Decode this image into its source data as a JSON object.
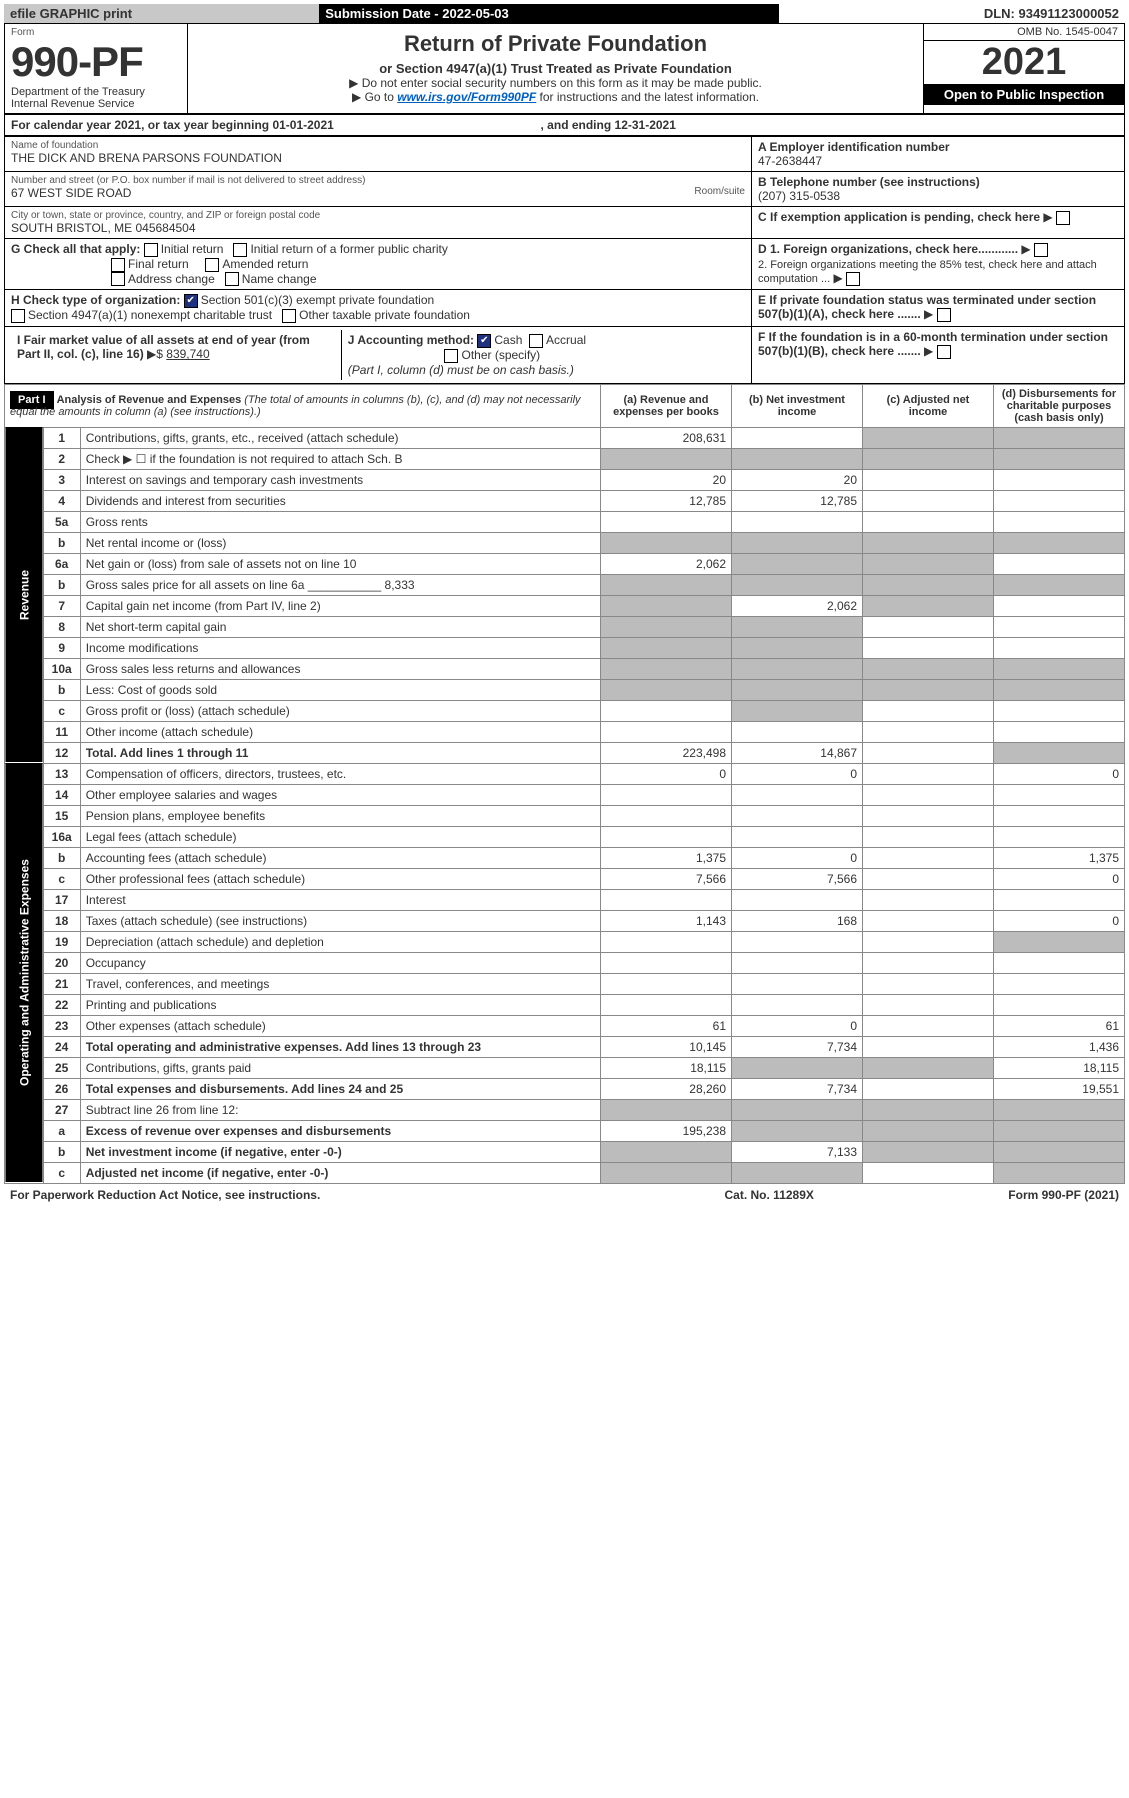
{
  "topbar": {
    "efile": "efile GRAPHIC print",
    "subdate_label": "Submission Date - ",
    "subdate": "2022-05-03",
    "dln_label": "DLN: ",
    "dln": "93491123000052"
  },
  "header": {
    "form_label": "Form",
    "form_num": "990-PF",
    "dept": "Department of the Treasury",
    "irs": "Internal Revenue Service",
    "title": "Return of Private Foundation",
    "sub": "or Section 4947(a)(1) Trust Treated as Private Foundation",
    "note1": "▶ Do not enter social security numbers on this form as it may be made public.",
    "note2_pre": "▶ Go to ",
    "note2_link": "www.irs.gov/Form990PF",
    "note2_post": " for instructions and the latest information.",
    "omb": "OMB No. 1545-0047",
    "year": "2021",
    "otp": "Open to Public Inspection"
  },
  "period": {
    "line": "For calendar year 2021, or tax year beginning 01-01-2021",
    "ending_label": ", and ending ",
    "ending": "12-31-2021"
  },
  "id": {
    "name_label": "Name of foundation",
    "name": "THE DICK AND BRENA PARSONS FOUNDATION",
    "addr_label": "Number and street (or P.O. box number if mail is not delivered to street address)",
    "addr": "67 WEST SIDE ROAD",
    "room_label": "Room/suite",
    "city_label": "City or town, state or province, country, and ZIP or foreign postal code",
    "city": "SOUTH BRISTOL, ME  045684504",
    "ein_label": "A Employer identification number",
    "ein": "47-2638447",
    "tel_label": "B Telephone number (see instructions)",
    "tel": "(207) 315-0538",
    "c_label": "C If exemption application is pending, check here",
    "d1": "D 1. Foreign organizations, check here............",
    "d2": "2. Foreign organizations meeting the 85% test, check here and attach computation ...",
    "e_label": "E  If private foundation status was terminated under section 507(b)(1)(A), check here .......",
    "f_label": "F  If the foundation is in a 60-month termination under section 507(b)(1)(B), check here .......",
    "g_label": "G Check all that apply:",
    "g_opts": [
      "Initial return",
      "Initial return of a former public charity",
      "Final return",
      "Amended return",
      "Address change",
      "Name change"
    ],
    "h_label": "H Check type of organization:",
    "h_opts": [
      "Section 501(c)(3) exempt private foundation",
      "Section 4947(a)(1) nonexempt charitable trust",
      "Other taxable private foundation"
    ],
    "i_label": "I Fair market value of all assets at end of year (from Part II, col. (c), line 16)",
    "i_val": "839,740",
    "j_label": "J Accounting method:",
    "j_opts": [
      "Cash",
      "Accrual",
      "Other (specify)"
    ],
    "j_note": "(Part I, column (d) must be on cash basis.)"
  },
  "part1": {
    "label": "Part I",
    "title": "Analysis of Revenue and Expenses",
    "note": "(The total of amounts in columns (b), (c), and (d) may not necessarily equal the amounts in column (a) (see instructions).)",
    "cols": {
      "a": "(a) Revenue and expenses per books",
      "b": "(b) Net investment income",
      "c": "(c) Adjusted net income",
      "d": "(d) Disbursements for charitable purposes (cash basis only)"
    },
    "side_rev": "Revenue",
    "side_exp": "Operating and Administrative Expenses",
    "rows": [
      {
        "n": "1",
        "desc": "Contributions, gifts, grants, etc., received (attach schedule)",
        "a": "208,631",
        "b": "",
        "c_grey": true,
        "d_grey": true
      },
      {
        "n": "2",
        "desc": "Check ▶ ☐ if the foundation is not required to attach Sch. B",
        "a_grey": true,
        "b_grey": true,
        "c_grey": true,
        "d_grey": true
      },
      {
        "n": "3",
        "desc": "Interest on savings and temporary cash investments",
        "a": "20",
        "b": "20"
      },
      {
        "n": "4",
        "desc": "Dividends and interest from securities",
        "a": "12,785",
        "b": "12,785"
      },
      {
        "n": "5a",
        "desc": "Gross rents",
        "a": "",
        "b": ""
      },
      {
        "n": "b",
        "desc": "Net rental income or (loss)",
        "a_grey": true,
        "b_grey": true,
        "c_grey": true,
        "d_grey": true
      },
      {
        "n": "6a",
        "desc": "Net gain or (loss) from sale of assets not on line 10",
        "a": "2,062",
        "b_grey": true,
        "c_grey": true
      },
      {
        "n": "b",
        "desc": "Gross sales price for all assets on line 6a ___________ 8,333",
        "a_grey": true,
        "b_grey": true,
        "c_grey": true,
        "d_grey": true
      },
      {
        "n": "7",
        "desc": "Capital gain net income (from Part IV, line 2)",
        "a_grey": true,
        "b": "2,062",
        "c_grey": true
      },
      {
        "n": "8",
        "desc": "Net short-term capital gain",
        "a_grey": true,
        "b_grey": true
      },
      {
        "n": "9",
        "desc": "Income modifications",
        "a_grey": true,
        "b_grey": true
      },
      {
        "n": "10a",
        "desc": "Gross sales less returns and allowances",
        "a_grey": true,
        "b_grey": true,
        "c_grey": true,
        "d_grey": true
      },
      {
        "n": "b",
        "desc": "Less: Cost of goods sold",
        "a_grey": true,
        "b_grey": true,
        "c_grey": true,
        "d_grey": true
      },
      {
        "n": "c",
        "desc": "Gross profit or (loss) (attach schedule)",
        "a": "",
        "b_grey": true
      },
      {
        "n": "11",
        "desc": "Other income (attach schedule)",
        "a": "",
        "b": ""
      },
      {
        "n": "12",
        "desc_bold": "Total. Add lines 1 through 11",
        "a": "223,498",
        "b": "14,867",
        "c": "",
        "d_grey": true
      },
      {
        "n": "13",
        "desc": "Compensation of officers, directors, trustees, etc.",
        "a": "0",
        "b": "0",
        "c": "",
        "d": "0"
      },
      {
        "n": "14",
        "desc": "Other employee salaries and wages",
        "a": "",
        "b": ""
      },
      {
        "n": "15",
        "desc": "Pension plans, employee benefits",
        "a": "",
        "b": ""
      },
      {
        "n": "16a",
        "desc": "Legal fees (attach schedule)",
        "a": "",
        "b": ""
      },
      {
        "n": "b",
        "desc": "Accounting fees (attach schedule)",
        "a": "1,375",
        "b": "0",
        "c": "",
        "d": "1,375"
      },
      {
        "n": "c",
        "desc": "Other professional fees (attach schedule)",
        "a": "7,566",
        "b": "7,566",
        "c": "",
        "d": "0"
      },
      {
        "n": "17",
        "desc": "Interest",
        "a": "",
        "b": ""
      },
      {
        "n": "18",
        "desc": "Taxes (attach schedule) (see instructions)",
        "a": "1,143",
        "b": "168",
        "c": "",
        "d": "0"
      },
      {
        "n": "19",
        "desc": "Depreciation (attach schedule) and depletion",
        "a": "",
        "b": "",
        "d_grey": true
      },
      {
        "n": "20",
        "desc": "Occupancy",
        "a": "",
        "b": ""
      },
      {
        "n": "21",
        "desc": "Travel, conferences, and meetings",
        "a": "",
        "b": ""
      },
      {
        "n": "22",
        "desc": "Printing and publications",
        "a": "",
        "b": ""
      },
      {
        "n": "23",
        "desc": "Other expenses (attach schedule)",
        "a": "61",
        "b": "0",
        "c": "",
        "d": "61"
      },
      {
        "n": "24",
        "desc_bold": "Total operating and administrative expenses. Add lines 13 through 23",
        "a": "10,145",
        "b": "7,734",
        "c": "",
        "d": "1,436"
      },
      {
        "n": "25",
        "desc": "Contributions, gifts, grants paid",
        "a": "18,115",
        "b_grey": true,
        "c_grey": true,
        "d": "18,115"
      },
      {
        "n": "26",
        "desc_bold": "Total expenses and disbursements. Add lines 24 and 25",
        "a": "28,260",
        "b": "7,734",
        "c": "",
        "d": "19,551"
      },
      {
        "n": "27",
        "desc": "Subtract line 26 from line 12:",
        "a_grey": true,
        "b_grey": true,
        "c_grey": true,
        "d_grey": true
      },
      {
        "n": "a",
        "desc_bold": "Excess of revenue over expenses and disbursements",
        "a": "195,238",
        "b_grey": true,
        "c_grey": true,
        "d_grey": true
      },
      {
        "n": "b",
        "desc_bold": "Net investment income (if negative, enter -0-)",
        "a_grey": true,
        "b": "7,133",
        "c_grey": true,
        "d_grey": true
      },
      {
        "n": "c",
        "desc_bold": "Adjusted net income (if negative, enter -0-)",
        "a_grey": true,
        "b_grey": true,
        "c": "",
        "d_grey": true
      }
    ]
  },
  "footer": {
    "left": "For Paperwork Reduction Act Notice, see instructions.",
    "cat": "Cat. No. 11289X",
    "form": "Form 990-PF (2021)"
  }
}
